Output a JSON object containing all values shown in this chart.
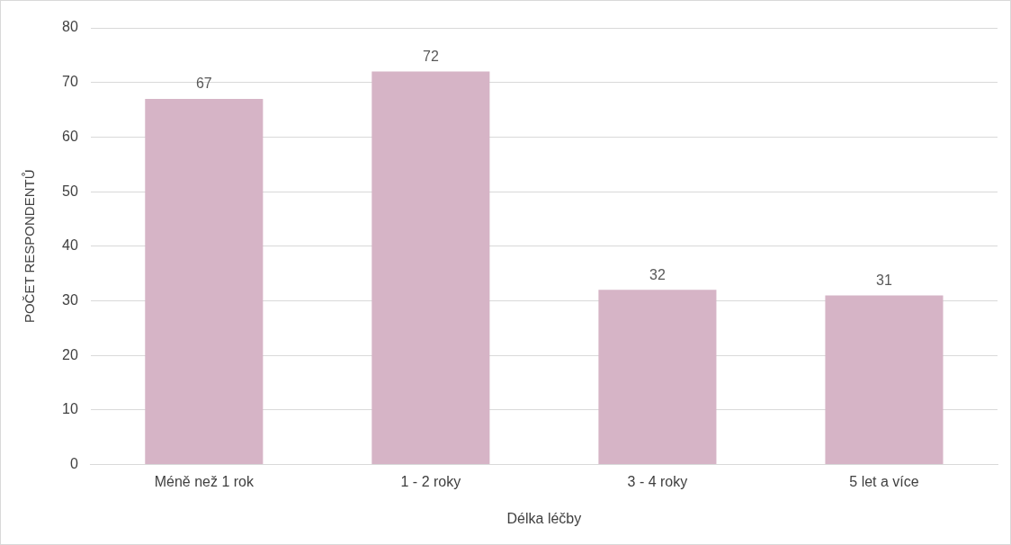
{
  "chart_data": {
    "type": "bar",
    "xlabel": "Délka léčby",
    "ylabel": "POČET RESPONDENTŮ",
    "categories": [
      "Méně než 1 rok",
      "1 - 2 roky",
      "3 - 4 roky",
      "5 let a více"
    ],
    "values": [
      67,
      72,
      32,
      31
    ],
    "color": "#d6b4c6",
    "ylim": [
      0,
      80
    ],
    "yticks": [
      0,
      10,
      20,
      30,
      40,
      50,
      60,
      70,
      80
    ],
    "grid": "y",
    "data_labels": true
  }
}
